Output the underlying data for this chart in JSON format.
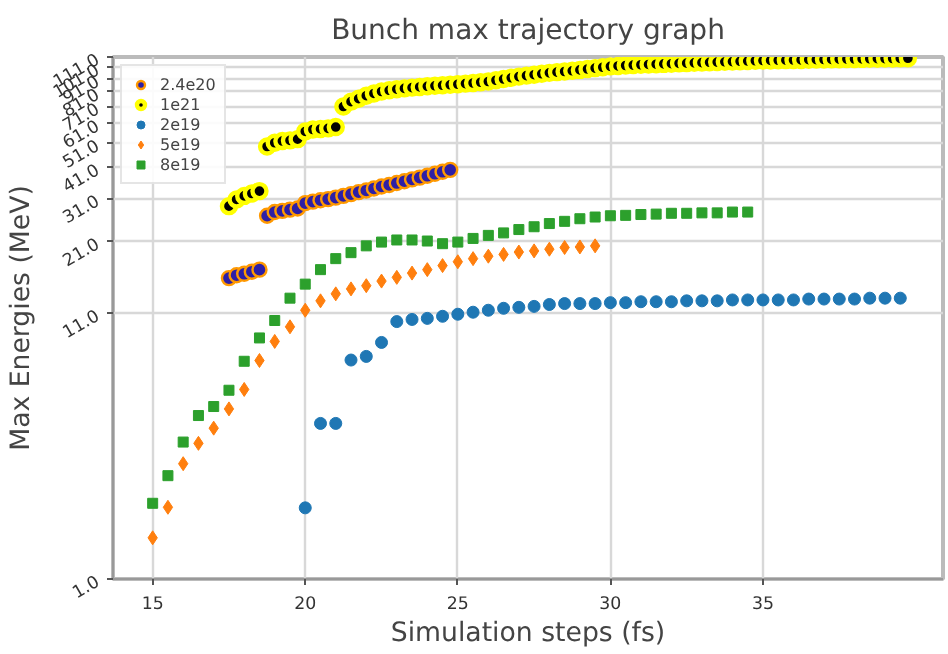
{
  "chart_data": {
    "type": "scatter",
    "title": "Bunch max trajectory graph",
    "xlabel": "Simulation steps (fs)",
    "ylabel": "Max Energies (MeV)",
    "log": "y",
    "grid": true,
    "legend": "top left",
    "xlim": [
      13.7,
      40.9
    ],
    "xticks": [
      15,
      20,
      25,
      30,
      35
    ],
    "ylim": [
      1,
      111
    ],
    "yticks": [
      {
        "value": 1,
        "label": "1.0"
      },
      {
        "value": 11,
        "label": "11.0"
      },
      {
        "value": 21,
        "label": "21.0"
      },
      {
        "value": 31,
        "label": "31.0"
      },
      {
        "value": 41,
        "label": "41.0"
      },
      {
        "value": 51,
        "label": "51.0"
      },
      {
        "value": 61,
        "label": "61.0"
      },
      {
        "value": 71,
        "label": "71.0"
      },
      {
        "value": 81,
        "label": "81.0"
      },
      {
        "value": 91,
        "label": "91.0"
      },
      {
        "value": 101,
        "label": "101.0"
      },
      {
        "value": 111,
        "label": "111.0"
      }
    ],
    "series": [
      {
        "name": "2.4e20",
        "color": "#2d1fa6",
        "marker": "circle",
        "x": [
          17.5,
          17.75,
          18,
          18.25,
          18.5,
          18.75,
          19,
          19.25,
          19.5,
          19.75,
          20,
          20.25,
          20.5,
          20.75,
          21,
          21.25,
          21.5,
          21.75,
          22,
          22.25,
          22.5,
          22.75,
          23,
          23.25,
          23.5,
          23.75,
          24,
          24.25,
          24.5,
          24.75
        ],
        "values": [
          15.1,
          15.5,
          15.7,
          16.0,
          16.3,
          26.5,
          27.4,
          27.7,
          28.0,
          28.3,
          29.7,
          30.1,
          30.5,
          30.8,
          31.2,
          31.7,
          32.2,
          32.8,
          33.3,
          33.9,
          34.5,
          35.0,
          35.6,
          36.2,
          36.8,
          37.4,
          38.0,
          38.7,
          39.4,
          40.1
        ]
      },
      {
        "name": "1e21",
        "color": "#000000",
        "marker": "circle",
        "x": [
          17.5,
          17.75,
          18,
          18.25,
          18.5,
          18.75,
          19,
          19.25,
          19.5,
          19.75,
          20,
          20.25,
          20.5,
          20.75,
          21,
          21.25,
          21.5,
          21.75,
          22,
          22.25,
          22.5,
          22.75,
          23,
          23.25,
          23.5,
          23.75,
          24,
          24.25,
          24.5,
          24.75,
          25,
          25.25,
          25.5,
          25.75,
          26,
          26.25,
          26.5,
          26.75,
          27,
          27.25,
          27.5,
          27.75,
          28,
          28.25,
          28.5,
          28.75,
          29,
          29.25,
          29.5,
          29.75,
          30,
          30.25,
          30.5,
          30.75,
          31,
          31.25,
          31.5,
          31.75,
          32,
          32.25,
          32.5,
          32.75,
          33,
          33.25,
          33.5,
          33.75,
          34,
          34.25,
          34.5,
          34.75,
          35,
          35.25,
          35.5,
          35.75,
          36,
          36.25,
          36.5,
          36.75,
          37,
          37.25,
          37.5,
          37.75,
          38,
          38.25,
          38.5,
          38.75,
          39,
          39.25,
          39.5,
          39.75
        ],
        "values": [
          28.9,
          30.7,
          31.7,
          32.4,
          33.1,
          49.5,
          51.2,
          52.0,
          52.3,
          52.9,
          56.7,
          57.7,
          58.0,
          58.3,
          59.0,
          71.0,
          74.2,
          76.2,
          78.3,
          79.9,
          81.3,
          82.2,
          83.0,
          83.6,
          84.2,
          84.7,
          85.2,
          85.6,
          86.0,
          86.4,
          86.8,
          87.3,
          87.8,
          88.4,
          89.0,
          90.0,
          91.0,
          92.0,
          93.0,
          93.8,
          94.6,
          95.4,
          96.2,
          96.8,
          97.4,
          98.0,
          98.8,
          99.6,
          100.4,
          101.2,
          102.0,
          102.4,
          102.8,
          103.2,
          103.5,
          103.8,
          104.0,
          104.3,
          104.5,
          104.8,
          105.0,
          105.3,
          105.5,
          105.8,
          106.0,
          106.3,
          106.5,
          106.8,
          107.0,
          107.3,
          107.5,
          107.6,
          107.8,
          107.9,
          108.0,
          108.1,
          108.3,
          108.4,
          108.5,
          108.6,
          108.8,
          108.9,
          109.0,
          109.1,
          109.2,
          109.3,
          109.4,
          109.5,
          109.6,
          109.7
        ]
      },
      {
        "name": "2e19",
        "color": "#1f77b4",
        "marker": "circle",
        "x": [
          20,
          20.5,
          21,
          21.5,
          22,
          22.5,
          23,
          23.5,
          24,
          24.5,
          25,
          25.5,
          26,
          26.5,
          27,
          27.5,
          28,
          28.5,
          29,
          29.5,
          30,
          30.5,
          31,
          31.5,
          32,
          32.5,
          33,
          33.5,
          34,
          34.5,
          35,
          35.5,
          36,
          36.5,
          37,
          37.5,
          38,
          38.5,
          39,
          39.5
        ],
        "values": [
          1.9,
          4.07,
          4.07,
          7.21,
          7.45,
          8.45,
          10.2,
          10.4,
          10.5,
          10.7,
          10.9,
          11.1,
          11.3,
          11.5,
          11.6,
          11.7,
          11.9,
          12.0,
          12.0,
          12.0,
          12.1,
          12.1,
          12.2,
          12.2,
          12.2,
          12.3,
          12.3,
          12.3,
          12.4,
          12.4,
          12.4,
          12.4,
          12.4,
          12.5,
          12.5,
          12.5,
          12.5,
          12.6,
          12.6,
          12.6
        ]
      },
      {
        "name": "5e19",
        "color": "#ff7f0e",
        "marker": "diamond",
        "x": [
          15,
          15.5,
          16,
          16.5,
          17,
          17.5,
          18,
          18.5,
          19,
          19.5,
          20,
          20.5,
          21,
          21.5,
          22,
          22.5,
          23,
          23.5,
          24,
          24.5,
          25,
          25.5,
          26,
          26.5,
          27,
          27.5,
          28,
          28.5,
          29,
          29.5
        ],
        "values": [
          1.45,
          1.91,
          2.83,
          3.4,
          3.9,
          4.64,
          5.53,
          7.18,
          8.53,
          9.73,
          11.3,
          12.3,
          13.1,
          13.7,
          14.1,
          14.7,
          15.2,
          15.8,
          16.3,
          16.9,
          17.5,
          18.0,
          18.4,
          18.7,
          19.1,
          19.3,
          19.6,
          19.9,
          20.0,
          20.2
        ]
      },
      {
        "name": "8e19",
        "color": "#2ca02c",
        "marker": "square",
        "x": [
          15,
          15.5,
          16,
          16.5,
          17,
          17.5,
          18,
          18.5,
          19,
          19.5,
          20,
          20.5,
          21,
          21.5,
          22,
          22.5,
          23,
          23.5,
          24,
          24.5,
          25,
          25.5,
          26,
          26.5,
          27,
          27.5,
          28,
          28.5,
          29,
          29.5,
          30,
          30.5,
          31,
          31.5,
          32,
          32.5,
          33,
          33.5,
          34,
          34.5
        ],
        "values": [
          1.98,
          2.54,
          3.44,
          4.37,
          4.74,
          5.49,
          7.13,
          8.8,
          10.3,
          12.6,
          14.3,
          16.3,
          18.0,
          19.0,
          20.2,
          20.9,
          21.3,
          21.3,
          21.1,
          20.6,
          20.9,
          21.6,
          22.2,
          22.7,
          23.4,
          24.0,
          24.7,
          25.2,
          25.8,
          26.2,
          26.5,
          26.6,
          26.8,
          26.9,
          27.1,
          27.1,
          27.2,
          27.2,
          27.4,
          27.4
        ]
      }
    ]
  }
}
